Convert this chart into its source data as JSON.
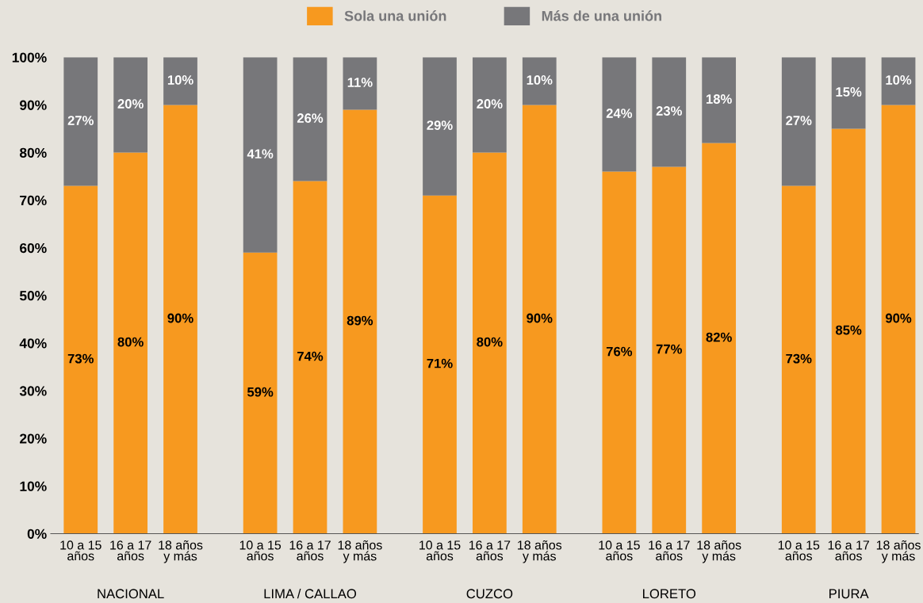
{
  "chart_data": {
    "type": "bar",
    "stacked": true,
    "legend": "top",
    "grid": false,
    "categories": [
      "10 a 15\naños",
      "16 a 17\naños",
      "18 años\ny más",
      "10 a 15\naños",
      "16 a 17\naños",
      "18 años\ny más",
      "10 a 15\naños",
      "16 a 17\naños",
      "18 años\ny más",
      "10 a 15\naños",
      "16 a 17\naños",
      "18 años\ny más",
      "10 a 15\naños",
      "16 a 17\naños",
      "18 años\ny más"
    ],
    "series": [
      {
        "name": "Sola una unión",
        "color": "#f7991f",
        "values": [
          73,
          80,
          90,
          59,
          74,
          89,
          71,
          80,
          90,
          76,
          77,
          82,
          73,
          85,
          90
        ],
        "value_labels": [
          "73%",
          "80%",
          "90%",
          "59%",
          "74%",
          "89%",
          "71%",
          "80%",
          "90%",
          "76%",
          "77%",
          "82%",
          "73%",
          "85%",
          "90%"
        ]
      },
      {
        "name": "Más de una unión",
        "color": "#77777a",
        "values": [
          27,
          20,
          10,
          41,
          26,
          11,
          29,
          20,
          10,
          24,
          23,
          18,
          27,
          15,
          10
        ],
        "value_labels": [
          "27%",
          "20%",
          "10%",
          "41%",
          "26%",
          "11%",
          "29%",
          "20%",
          "10%",
          "24%",
          "23%",
          "18%",
          "27%",
          "15%",
          "10%"
        ]
      }
    ],
    "ylim": [
      0,
      100
    ],
    "yticks": [
      {
        "value": 0,
        "label": "0%"
      },
      {
        "value": 10,
        "label": "10%"
      },
      {
        "value": 20,
        "label": "20%"
      },
      {
        "value": 30,
        "label": "30%"
      },
      {
        "value": 40,
        "label": "40%"
      },
      {
        "value": 50,
        "label": "50%"
      },
      {
        "value": 60,
        "label": "60%"
      },
      {
        "value": 70,
        "label": "70%"
      },
      {
        "value": 80,
        "label": "80%"
      },
      {
        "value": 90,
        "label": "90%"
      },
      {
        "value": 100,
        "label": "100%"
      }
    ],
    "annotations": [
      "NACIONAL",
      "LIMA / CALLAO",
      "CUZCO",
      "LORETO",
      "PIURA"
    ]
  }
}
